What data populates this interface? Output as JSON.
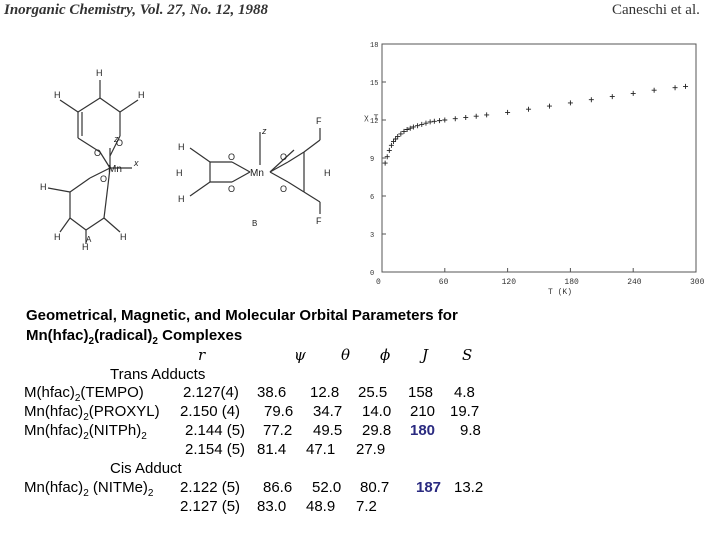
{
  "header": {
    "journal": "Inorganic Chemistry, Vol. 27, No. 12, 1988",
    "authors": "Caneschi et al."
  },
  "figures": {
    "labelA": "A",
    "labelB": "B",
    "mn": "Mn",
    "atoms": {
      "H": "H",
      "O": "O",
      "F": "F",
      "z": "z",
      "x": "x"
    }
  },
  "chart_data": {
    "type": "scatter",
    "title": "",
    "xlabel": "T (K)",
    "ylabel": "χ T",
    "xlim": [
      0,
      300
    ],
    "ylim": [
      0,
      18
    ],
    "x_ticks": [
      "0",
      "60",
      "120",
      "180",
      "240",
      "300"
    ],
    "y_ticks": [
      "0",
      "3",
      "6",
      "9",
      "12",
      "15",
      "18"
    ],
    "grid": false,
    "series": [
      {
        "x": [
          3,
          5,
          7,
          9,
          11,
          13,
          15,
          18,
          21,
          24,
          27,
          30,
          34,
          38,
          42,
          46,
          50,
          55,
          60,
          70,
          80,
          90,
          100,
          120,
          140,
          160,
          180,
          200,
          220,
          240,
          260,
          280,
          290
        ],
        "values": [
          8.6,
          9.1,
          9.6,
          10.0,
          10.3,
          10.5,
          10.7,
          10.9,
          11.1,
          11.25,
          11.35,
          11.45,
          11.55,
          11.65,
          11.75,
          11.85,
          11.9,
          11.95,
          12.0,
          12.1,
          12.2,
          12.3,
          12.4,
          12.6,
          12.85,
          13.1,
          13.35,
          13.6,
          13.85,
          14.1,
          14.35,
          14.55,
          14.65
        ]
      }
    ]
  },
  "caption": {
    "line1": "Geometrical, Magnetic, and Molecular Orbital Parameters for",
    "line2_pre": "Mn(hfac)",
    "line2_sub": "2",
    "line2_post": "(radical)",
    "line2_sub2": "2",
    "line2_end": " Complexes"
  },
  "table": {
    "columns": [
      "r",
      "ψ",
      "θ",
      "ϕ",
      "J",
      "S"
    ],
    "trans_heading": "Trans Adducts",
    "cis_heading": "Cis Adduct",
    "rows": [
      {
        "name_pre": "M(hfac)",
        "name_sub": "2",
        "name_post": "(TEMPO)",
        "r": "2.127(4)",
        "psi": "38.6",
        "theta": "12.8",
        "phi": "25.5",
        "J": "158",
        "S": "4.8"
      },
      {
        "name_pre": "Mn(hfac)",
        "name_sub": "2",
        "name_post": "(PROXYL)",
        "r": "2.150 (4)",
        "psi": "79.6",
        "theta": "34.7",
        "phi": "14.0",
        "J": "210",
        "S": "19.7"
      },
      {
        "name_pre": "Mn(hfac)",
        "name_sub": "2",
        "name_post": "(NITPh)",
        "name_sub2": "2",
        "r": "2.144 (5)",
        "psi": "77.2",
        "theta": "49.5",
        "phi": "29.8",
        "J": "180",
        "S": "9.8"
      },
      {
        "name_pre": "",
        "r": "2.154 (5)",
        "psi": "81.4",
        "theta": "47.1",
        "phi": "27.9",
        "J": "",
        "S": ""
      },
      {
        "name_pre": "Mn(hfac)",
        "name_sub": "2",
        "name_post": " (NITMe)",
        "name_sub2": "2",
        "r": "2.122 (5)",
        "psi": "86.6",
        "theta": "52.0",
        "phi": "80.7",
        "J": "187",
        "S": "13.2"
      },
      {
        "name_pre": "",
        "r": "2.127 (5)",
        "psi": "83.0",
        "theta": "48.9",
        "phi": "7.2",
        "J": "",
        "S": ""
      }
    ]
  }
}
